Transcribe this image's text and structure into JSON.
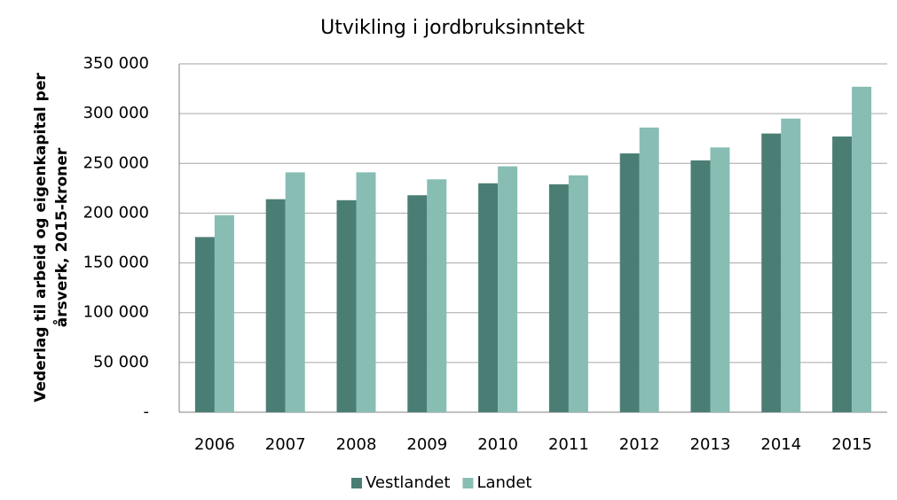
{
  "chart_data": {
    "type": "bar",
    "title": "Utvikling i jordbruksinntekt",
    "y_label": [
      "Vederlag til arbeid og eigenkapital per",
      "årsverk, 2015-kroner"
    ],
    "categories": [
      "2006",
      "2007",
      "2008",
      "2009",
      "2010",
      "2011",
      "2012",
      "2013",
      "2014",
      "2015"
    ],
    "series": [
      {
        "name": "Vestlandet",
        "color": "#4a7e74",
        "values": [
          176000,
          214000,
          213000,
          218000,
          230000,
          229000,
          260000,
          253000,
          280000,
          277000
        ]
      },
      {
        "name": "Landet",
        "color": "#88bdb4",
        "values": [
          198000,
          241000,
          241000,
          234000,
          247000,
          238000,
          286000,
          266000,
          295000,
          327000
        ]
      }
    ],
    "ylim": [
      0,
      350000
    ],
    "yticks": [
      {
        "value": 0,
        "label": "-"
      },
      {
        "value": 50000,
        "label": "50 000"
      },
      {
        "value": 100000,
        "label": "100 000"
      },
      {
        "value": 150000,
        "label": "150 000"
      },
      {
        "value": 200000,
        "label": "200 000"
      },
      {
        "value": 250000,
        "label": "250 000"
      },
      {
        "value": 300000,
        "label": "300 000"
      },
      {
        "value": 350000,
        "label": "350 000"
      }
    ],
    "grid": true,
    "legend": "bottom"
  }
}
